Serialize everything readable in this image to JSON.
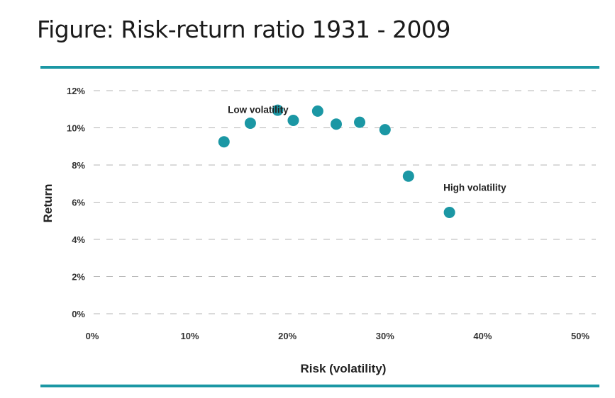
{
  "header": {
    "title": "Figure: Risk-return ratio 1931 - 2009"
  },
  "colors": {
    "accent": "#1b97a4",
    "point": "#1b97a4",
    "grid": "#b5b5b5"
  },
  "chart_data": {
    "type": "scatter",
    "title": "",
    "xlabel": "Risk (volatility)",
    "ylabel": "Return",
    "xlim": [
      0,
      50
    ],
    "ylim": [
      0,
      12
    ],
    "x_ticks": [
      {
        "value": 0,
        "label": "0%"
      },
      {
        "value": 10,
        "label": "10%"
      },
      {
        "value": 20,
        "label": "20%"
      },
      {
        "value": 30,
        "label": "30%"
      },
      {
        "value": 40,
        "label": "40%"
      },
      {
        "value": 50,
        "label": "50%"
      }
    ],
    "y_ticks": [
      {
        "value": 0,
        "label": "0%"
      },
      {
        "value": 2,
        "label": "2%"
      },
      {
        "value": 4,
        "label": "4%"
      },
      {
        "value": 6,
        "label": "6%"
      },
      {
        "value": 8,
        "label": "8%"
      },
      {
        "value": 10,
        "label": "10%"
      },
      {
        "value": 12,
        "label": "12%"
      }
    ],
    "grid": "horizontal-dashed",
    "points": [
      {
        "x": 13.5,
        "y": 9.25
      },
      {
        "x": 16.2,
        "y": 10.25
      },
      {
        "x": 19.0,
        "y": 10.95
      },
      {
        "x": 20.6,
        "y": 10.4
      },
      {
        "x": 23.1,
        "y": 10.9
      },
      {
        "x": 25.0,
        "y": 10.2
      },
      {
        "x": 27.4,
        "y": 10.3
      },
      {
        "x": 30.0,
        "y": 9.9
      },
      {
        "x": 32.4,
        "y": 7.4
      },
      {
        "x": 36.6,
        "y": 5.45
      }
    ],
    "annotations": [
      {
        "text": "Low volatility",
        "x": 17.0,
        "y": 11.0
      },
      {
        "text": "High volatility",
        "x": 39.2,
        "y": 6.8
      }
    ]
  }
}
